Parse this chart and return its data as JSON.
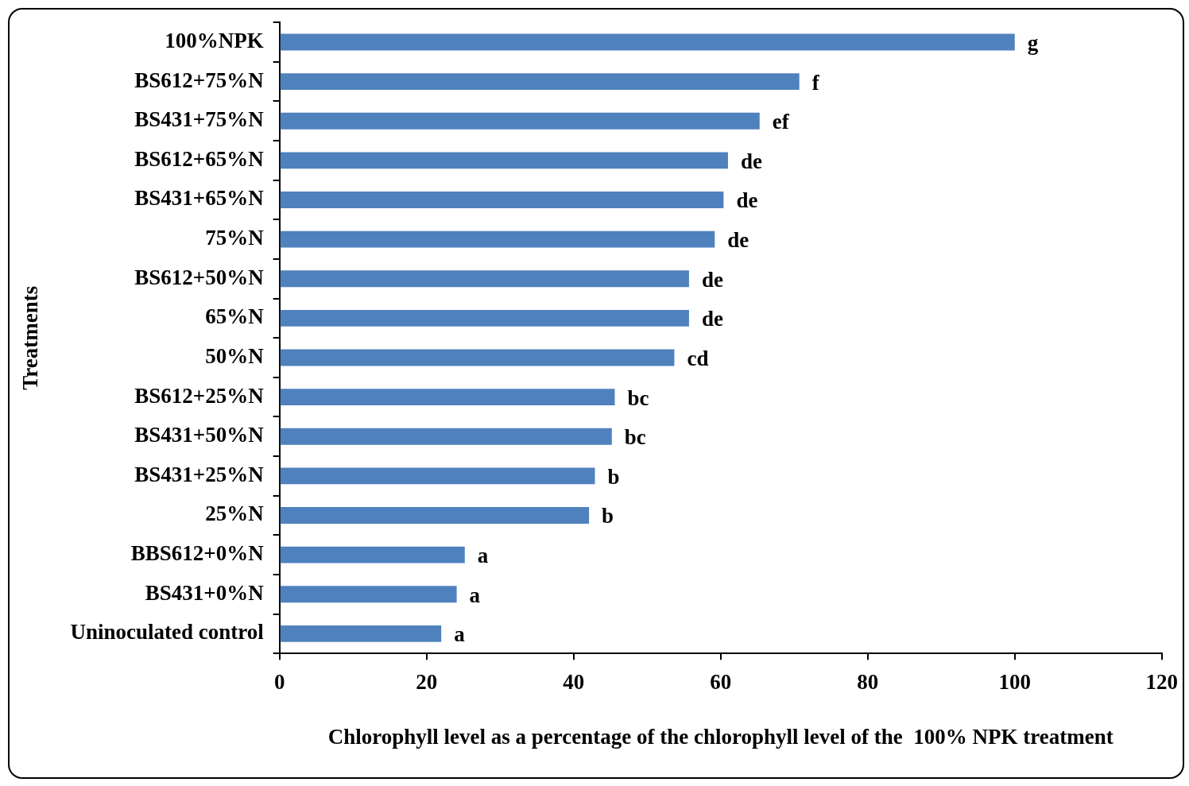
{
  "chart_data": {
    "type": "bar",
    "orientation": "horizontal",
    "xlabel": "Chlorophyll level as a percentage of the chlorophyll level of the  100% NPK treatment",
    "ylabel": "Treatments",
    "categories": [
      "100%NPK",
      "BS612+75%N",
      "BS431+75%N",
      "BS612+65%N",
      "BS431+65%N",
      "75%N",
      "BS612+50%N",
      "65%N",
      "50%N",
      "BS612+25%N",
      "BS431+50%N",
      "BS431+25%N",
      "25%N",
      "BBS612+0%N",
      "BS431+0%N",
      "Uninoculated control"
    ],
    "values": [
      100,
      70.7,
      65.3,
      61.0,
      60.4,
      59.2,
      55.7,
      55.7,
      53.7,
      45.6,
      45.2,
      42.9,
      42.1,
      25.2,
      24.1,
      22.0
    ],
    "value_labels": [
      "g",
      "f",
      "ef",
      "de",
      "de",
      "de",
      "de",
      "de",
      "cd",
      "bc",
      "bc",
      "b",
      "b",
      "a",
      "a",
      "a"
    ],
    "color": "#4f81bd",
    "xlim": [
      0,
      120
    ],
    "xticks": [
      0,
      20,
      40,
      60,
      80,
      100,
      120
    ],
    "grid": false,
    "legend": false
  }
}
